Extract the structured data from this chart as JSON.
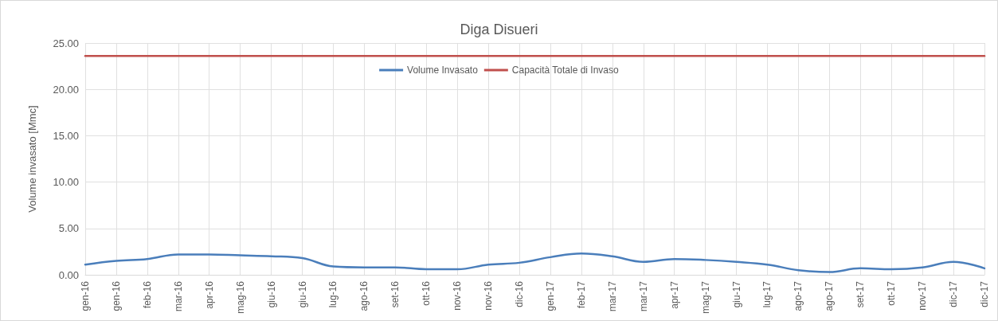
{
  "chart_data": {
    "type": "line",
    "title": "Diga Disueri",
    "ylabel": "Volume invasato [Mmc]",
    "categories": [
      "gen-16",
      "gen-16",
      "feb-16",
      "mar-16",
      "apr-16",
      "mag-16",
      "giu-16",
      "giu-16",
      "lug-16",
      "ago-16",
      "set-16",
      "ott-16",
      "nov-16",
      "nov-16",
      "dic-16",
      "gen-17",
      "feb-17",
      "mar-17",
      "mar-17",
      "apr-17",
      "mag-17",
      "giu-17",
      "lug-17",
      "ago-17",
      "ago-17",
      "set-17",
      "ott-17",
      "nov-17",
      "dic-17",
      "dic-17"
    ],
    "series": [
      {
        "name": "Volume Invasato",
        "color": "#4a7ebb",
        "values": [
          1.1,
          1.5,
          1.7,
          2.2,
          2.2,
          2.1,
          2.0,
          1.8,
          0.9,
          0.8,
          0.8,
          0.6,
          0.6,
          1.1,
          1.3,
          1.9,
          2.3,
          2.0,
          1.4,
          1.7,
          1.6,
          1.4,
          1.1,
          0.5,
          0.3,
          0.7,
          0.6,
          0.8,
          1.4,
          0.7
        ]
      },
      {
        "name": "Capacità Totale di Invaso",
        "color": "#c0504d",
        "values": [
          23.6,
          23.6,
          23.6,
          23.6,
          23.6,
          23.6,
          23.6,
          23.6,
          23.6,
          23.6,
          23.6,
          23.6,
          23.6,
          23.6,
          23.6,
          23.6,
          23.6,
          23.6,
          23.6,
          23.6,
          23.6,
          23.6,
          23.6,
          23.6,
          23.6,
          23.6,
          23.6,
          23.6,
          23.6,
          23.6
        ]
      }
    ],
    "ylim": [
      0,
      25
    ],
    "yticks": [
      {
        "value": 0,
        "label": "0.00"
      },
      {
        "value": 5,
        "label": "5.00"
      },
      {
        "value": 10,
        "label": "10.00"
      },
      {
        "value": 15,
        "label": "15.00"
      },
      {
        "value": 20,
        "label": "20.00"
      },
      {
        "value": 25,
        "label": "25.00"
      }
    ],
    "grid": true,
    "legend": "top",
    "marker": "none",
    "line_style": "solid"
  }
}
